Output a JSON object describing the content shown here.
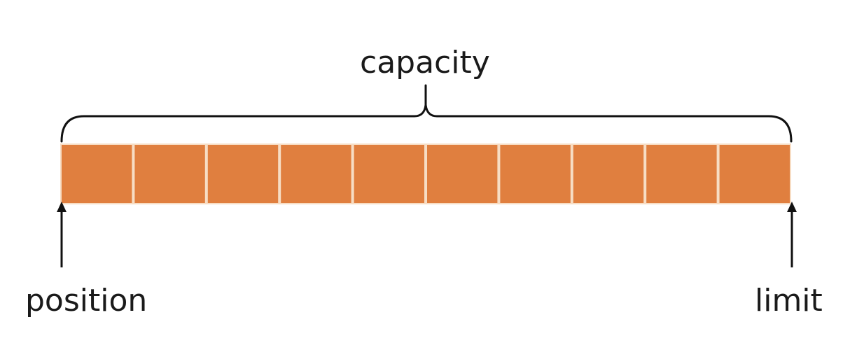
{
  "labels": {
    "capacity": "capacity",
    "position": "position",
    "limit": "limit"
  },
  "buffer": {
    "cell_count": 10
  },
  "colors": {
    "cell_fill": "#E07F3F",
    "cell_divider": "#F7DDC4",
    "line": "#111111"
  }
}
